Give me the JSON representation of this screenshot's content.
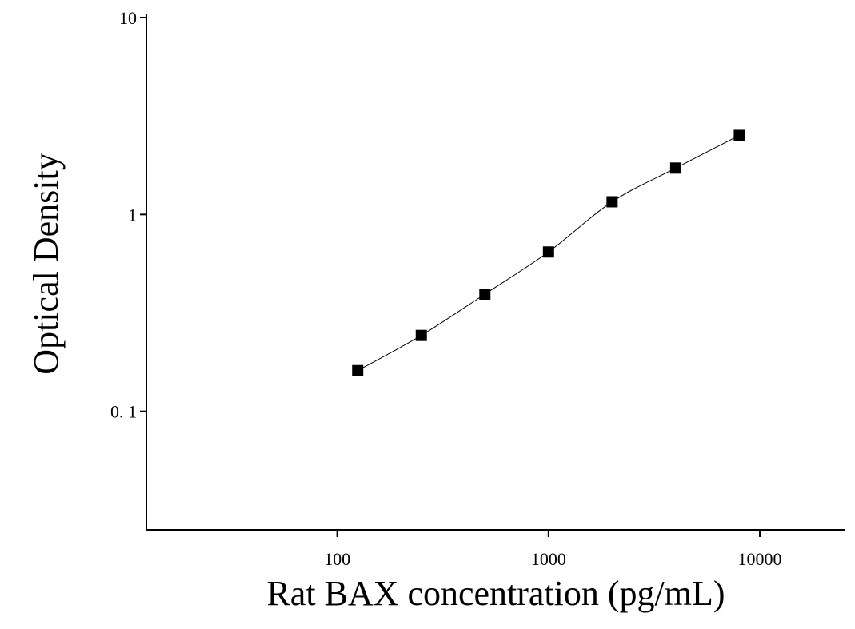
{
  "chart_data": {
    "type": "scatter",
    "xlabel": "Rat BAX concentration (pg/mL)",
    "ylabel": "Optical Density",
    "xscale": "log",
    "yscale": "log",
    "xlim": [
      12.5,
      25400
    ],
    "ylim": [
      0.025,
      10
    ],
    "xticks": [
      100,
      1000,
      10000
    ],
    "yticks": [
      {
        "value": 0.1,
        "label": "0. 1"
      },
      1,
      10
    ],
    "fit_curve": true,
    "series": [
      {
        "color": "#000000",
        "x": [
          125,
          250,
          500,
          1000,
          2000,
          4000,
          8000
        ],
        "values": [
          0.161,
          0.243,
          0.394,
          0.645,
          1.16,
          1.72,
          2.52
        ]
      }
    ]
  }
}
